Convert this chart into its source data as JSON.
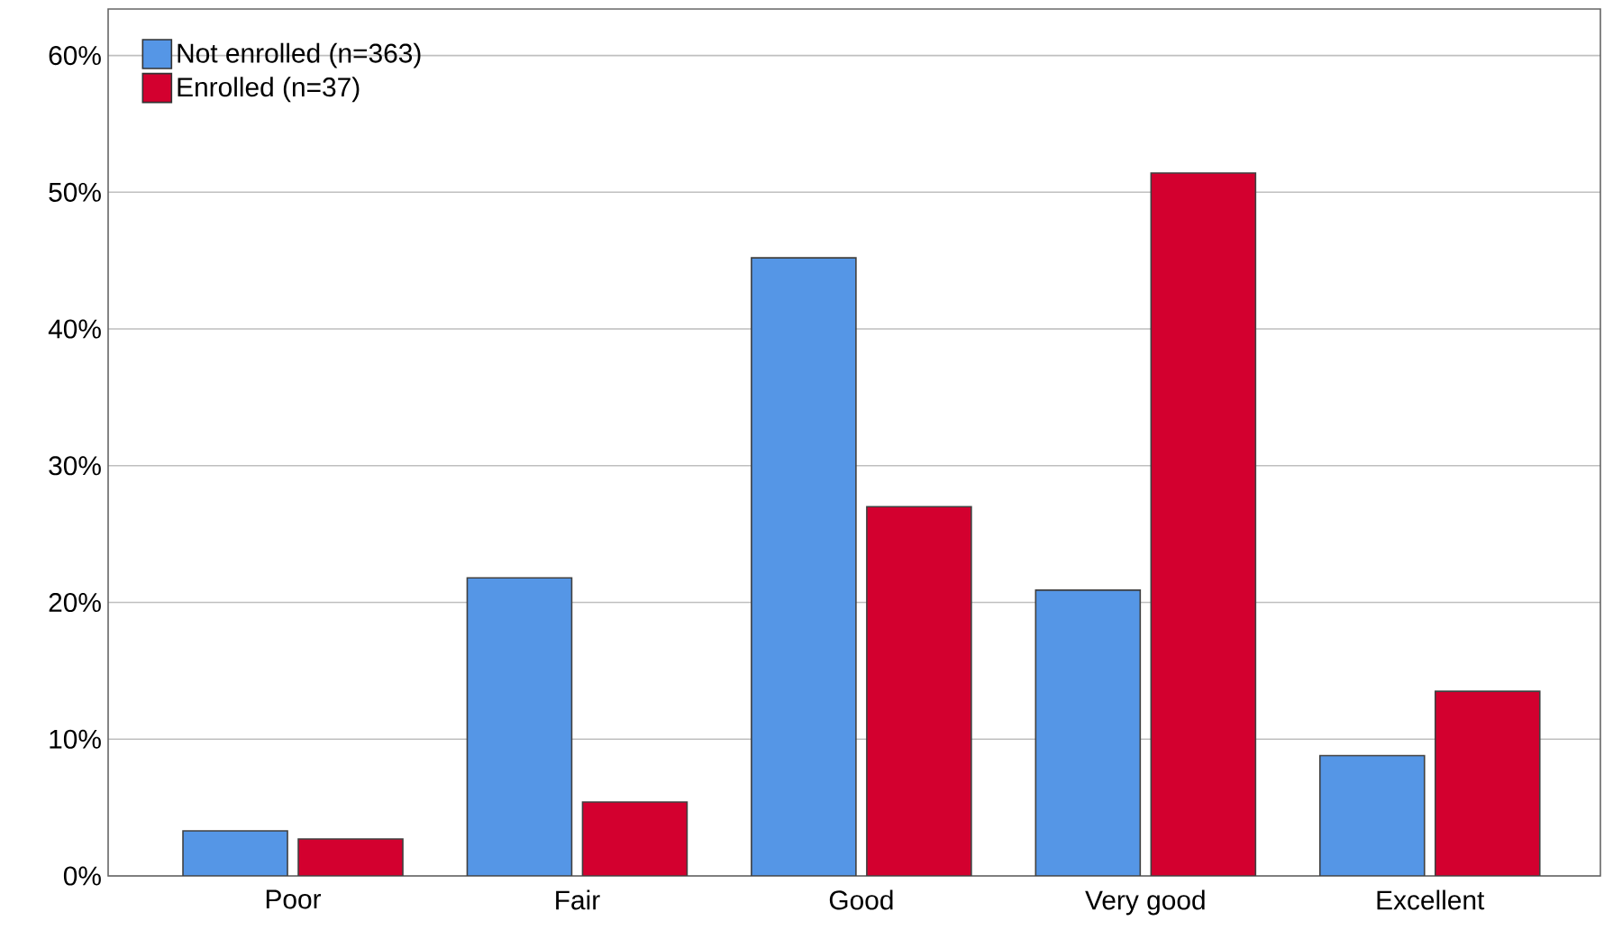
{
  "chart_data": {
    "type": "bar",
    "categories": [
      "Poor",
      "Fair",
      "Good",
      "Very good",
      "Excellent"
    ],
    "series": [
      {
        "name": "Not enrolled (n=363)",
        "color": "#5596e6",
        "values": [
          3.3,
          21.8,
          45.2,
          20.9,
          8.8
        ]
      },
      {
        "name": "Enrolled (n=37)",
        "color": "#d3002f",
        "values": [
          2.7,
          5.4,
          27.0,
          51.4,
          13.5
        ]
      }
    ],
    "ylim": [
      0,
      63.4
    ],
    "yticks": [
      {
        "value": 0,
        "label": "0%"
      },
      {
        "value": 10,
        "label": "10%"
      },
      {
        "value": 20,
        "label": "20%"
      },
      {
        "value": 30,
        "label": "30%"
      },
      {
        "value": 40,
        "label": "40%"
      },
      {
        "value": 50,
        "label": "50%"
      },
      {
        "value": 60,
        "label": "60%"
      }
    ],
    "grid": "y",
    "legend": "top left"
  }
}
